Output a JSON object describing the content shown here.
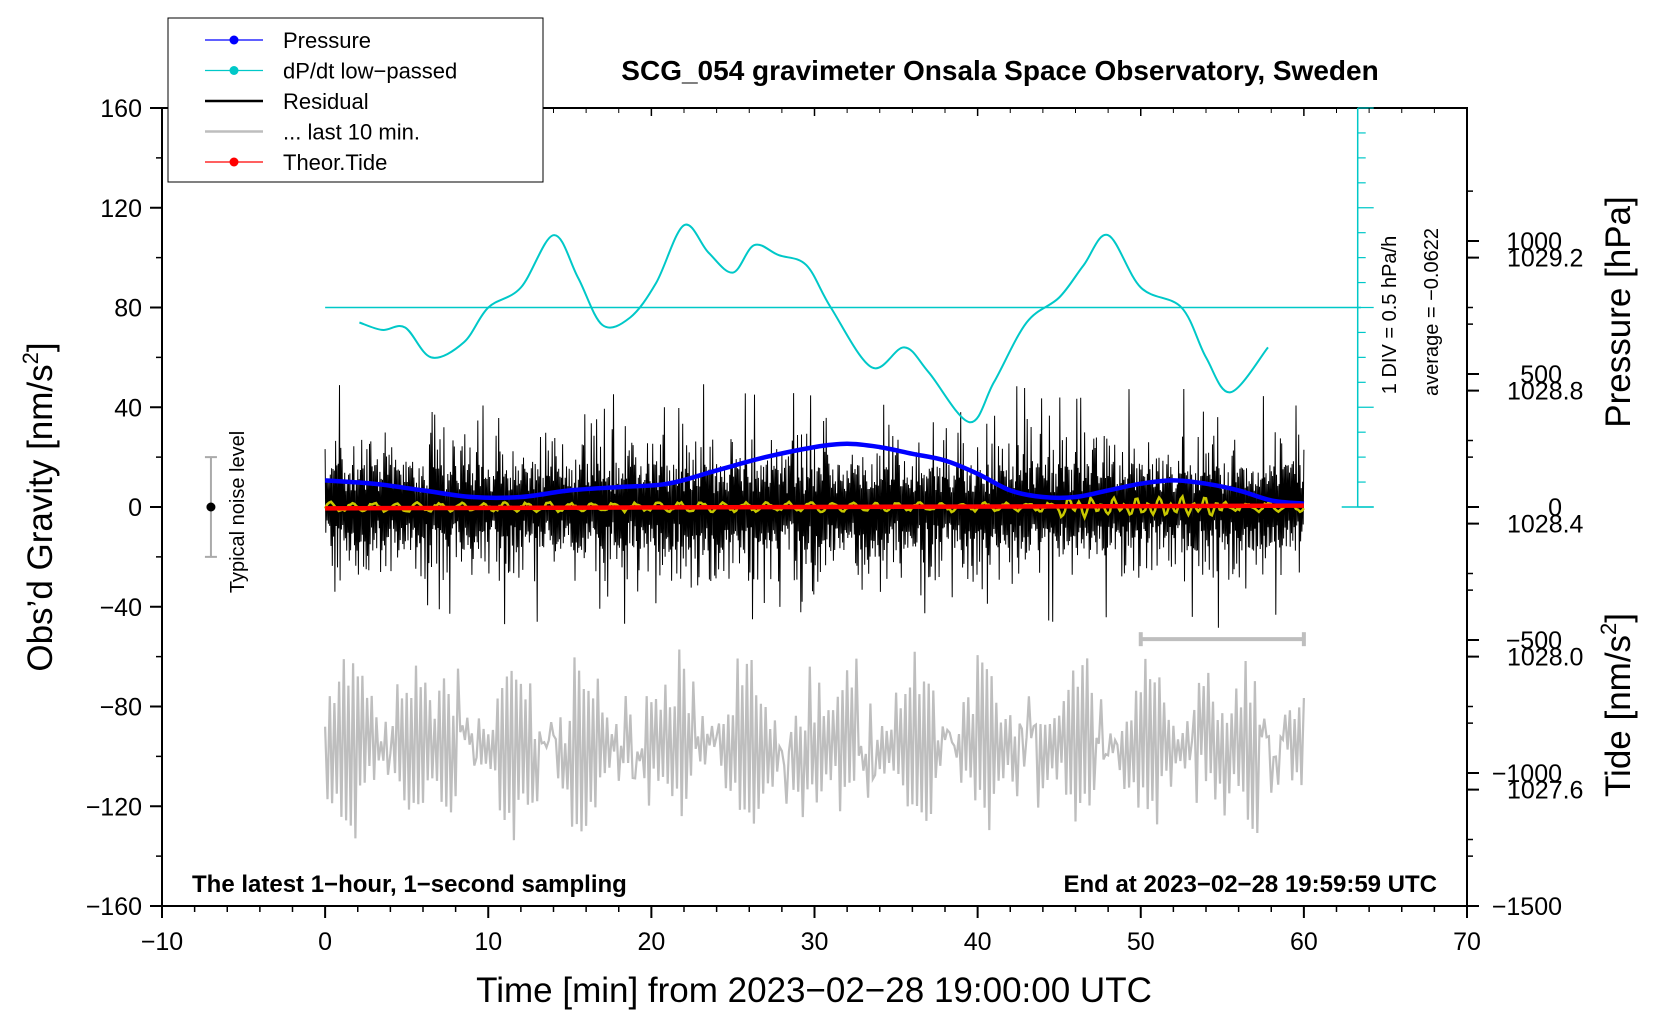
{
  "chart_data": {
    "type": "line",
    "title": "SCG_054 gravimeter Onsala Space Observatory, Sweden",
    "xlabel": "Time [min] from 2023−02−28 19:00:00 UTC",
    "ylabel_left": "Obs’d Gravity [nm/s",
    "ylabel_left_sup": "2",
    "ylabel_left_close": "]",
    "ylabel_right_pressure": "Pressure [hPa]",
    "ylabel_right_tide": "Tide [nm/s",
    "ylabel_right_tide_sup": "2",
    "ylabel_right_tide_close": "]",
    "xlim": [
      -10,
      70
    ],
    "ylim": [
      -160,
      160
    ],
    "pressure_lim": [
      1027.25,
      1029.65
    ],
    "tide_lim": [
      -1500,
      1500
    ],
    "x_ticks": [
      -10,
      0,
      10,
      20,
      30,
      40,
      50,
      60,
      70
    ],
    "x_tick_labels": [
      "−10",
      "0",
      "10",
      "20",
      "30",
      "40",
      "50",
      "60",
      "70"
    ],
    "y_ticks": [
      -160,
      -120,
      -80,
      -40,
      0,
      40,
      80,
      120,
      160
    ],
    "y_tick_labels": [
      "−160",
      "−120",
      "−80",
      "−40",
      "0",
      "40",
      "80",
      "120",
      "160"
    ],
    "pressure_ticks": [
      1027.6,
      1028.0,
      1028.4,
      1028.8,
      1029.2
    ],
    "pressure_tick_labels": [
      "1027.6",
      "1028.0",
      "1028.4",
      "1028.8",
      "1029.2"
    ],
    "tide_ticks": [
      -1500,
      -1000,
      -500,
      0,
      500,
      1000
    ],
    "tide_tick_labels": [
      "−1500",
      "−1000",
      "−500",
      "0",
      "500",
      "1000"
    ],
    "legend": [
      {
        "name": "Pressure",
        "color": "#0000ff",
        "marker": true
      },
      {
        "name": "dP/dt low−passed",
        "color": "#00c8c8",
        "marker": true
      },
      {
        "name": "Residual",
        "color": "#000000",
        "marker": false
      },
      {
        "name": "... last 10 min.",
        "color": "#bebebe",
        "marker": false
      },
      {
        "name": "Theor.Tide",
        "color": "#ff0000",
        "marker": true
      }
    ],
    "legend_position": "top-left",
    "series": [
      {
        "name": "Pressure",
        "axis": "pressure",
        "color": "#0000ff",
        "x": [
          0,
          3,
          6,
          9,
          12,
          15,
          18,
          21,
          24,
          27,
          30,
          32,
          34,
          36,
          38,
          40,
          42,
          44,
          46,
          48,
          50,
          52,
          54,
          56,
          58,
          60
        ],
        "values": [
          1028.53,
          1028.52,
          1028.5,
          1028.48,
          1028.48,
          1028.5,
          1028.51,
          1028.52,
          1028.56,
          1028.6,
          1028.63,
          1028.64,
          1028.63,
          1028.61,
          1028.59,
          1028.55,
          1028.5,
          1028.48,
          1028.48,
          1028.5,
          1028.52,
          1028.53,
          1028.52,
          1028.5,
          1028.47,
          1028.46
        ]
      },
      {
        "name": "dP/dt low−passed",
        "axis": "gravity",
        "color": "#00c8c8",
        "x": [
          2.1,
          3.5,
          4.9,
          6.5,
          8.5,
          10,
          12,
          14,
          15.5,
          17,
          18.7,
          20.3,
          22,
          23.5,
          25,
          26.3,
          27.8,
          29.5,
          31,
          33.5,
          35.5,
          37,
          39.5,
          41,
          43,
          45,
          46.5,
          48,
          50,
          52.5,
          54,
          55.5,
          57.8
        ],
        "values": [
          74,
          71,
          72,
          60,
          66,
          80,
          88,
          109,
          92,
          73,
          76,
          90,
          113,
          102,
          94,
          105,
          101,
          97,
          80,
          56,
          64,
          54,
          34,
          50,
          74,
          84,
          97,
          109,
          88,
          80,
          60,
          46,
          64
        ]
      },
      {
        "name": "Residual",
        "axis": "gravity",
        "color": "#000000",
        "noise_envelope": [
          -50,
          50
        ]
      },
      {
        "name": "... last 10 min.",
        "axis": "gravity",
        "color": "#bebebe",
        "noise_envelope": [
          -136,
          -55
        ]
      },
      {
        "name": "Theor.Tide",
        "axis": "tide",
        "color": "#ff0000",
        "x": [
          0,
          60
        ],
        "values": [
          -5,
          5
        ]
      }
    ],
    "reference_line": {
      "name": "dP/dt zero line",
      "axis": "gravity",
      "value": 80,
      "x_from": 0,
      "x_to": 63.5
    },
    "scale_bar_label": "1 DIV = 0.5 hPa/h",
    "average_label": "average = −0.0622",
    "noise_label": "Typical noise level",
    "noise_bar": {
      "x": -7,
      "center": 0,
      "half_range": 20
    },
    "gray_scale_bar": {
      "x_from": 50,
      "x_to": 60,
      "y": -53
    },
    "footer_left": "The latest 1−hour, 1−second sampling",
    "footer_right": "End at 2023−02−28 19:59:59 UTC",
    "grid": false
  }
}
